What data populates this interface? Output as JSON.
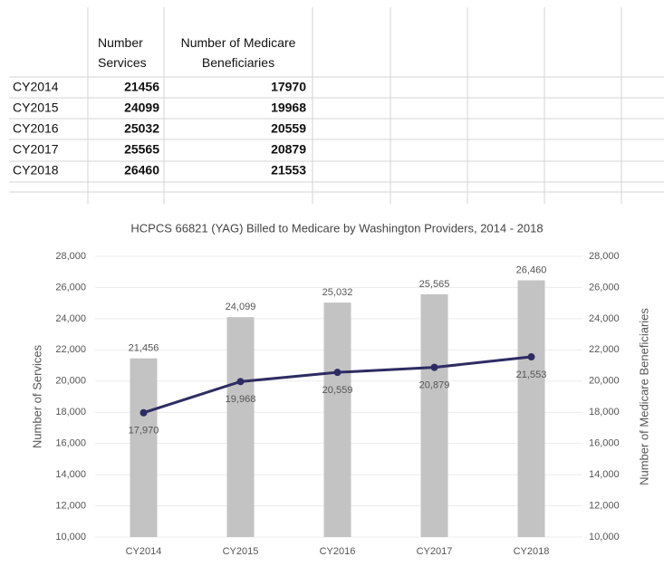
{
  "table": {
    "headers": [
      "Number Services",
      "Number of Medicare Beneficiaries"
    ],
    "rows": [
      [
        "CY2014",
        21456,
        17970
      ],
      [
        "CY2015",
        24099,
        19968
      ],
      [
        "CY2016",
        25032,
        20559
      ],
      [
        "CY2017",
        25565,
        20879
      ],
      [
        "CY2018",
        26460,
        21553
      ]
    ]
  },
  "chart_data": {
    "type": "bar",
    "title": "HCPCS 66821 (YAG) Billed to Medicare by Washington Providers, 2014 - 2018",
    "categories": [
      "CY2014",
      "CY2015",
      "CY2016",
      "CY2017",
      "CY2018"
    ],
    "ylabel": "Number of Services",
    "y2label": "Number of Medicare Beneficiaries",
    "ylim": [
      10000,
      28000
    ],
    "yticks": [
      {
        "value": 10000,
        "label": "10,000"
      },
      {
        "value": 12000,
        "label": "12,000"
      },
      {
        "value": 14000,
        "label": "14,000"
      },
      {
        "value": 16000,
        "label": "16,000"
      },
      {
        "value": 18000,
        "label": "18,000"
      },
      {
        "value": 20000,
        "label": "20,000"
      },
      {
        "value": 22000,
        "label": "22,000"
      },
      {
        "value": 24000,
        "label": "24,000"
      },
      {
        "value": 26000,
        "label": "26,000"
      },
      {
        "value": 28000,
        "label": "28,000"
      }
    ],
    "y2lim": [
      10000,
      28000
    ],
    "y2ticks": [
      {
        "value": 10000,
        "label": "10,000"
      },
      {
        "value": 12000,
        "label": "12,000"
      },
      {
        "value": 14000,
        "label": "14,000"
      },
      {
        "value": 16000,
        "label": "16,000"
      },
      {
        "value": 18000,
        "label": "18,000"
      },
      {
        "value": 20000,
        "label": "20,000"
      },
      {
        "value": 22000,
        "label": "22,000"
      },
      {
        "value": 24000,
        "label": "24,000"
      },
      {
        "value": 26000,
        "label": "26,000"
      },
      {
        "value": 28000,
        "label": "28,000"
      }
    ],
    "series": [
      {
        "name": "Number of Services",
        "type": "bar",
        "color": "#c3c3c3",
        "values": [
          21456,
          24099,
          25032,
          25565,
          26460
        ],
        "value_labels": [
          "21,456",
          "24,099",
          "25,032",
          "25,565",
          "26,460"
        ]
      },
      {
        "name": "Number of Medicare Beneficiaries",
        "type": "line",
        "axis": "y2",
        "color": "#2e2c62",
        "values": [
          17970,
          19968,
          20559,
          20879,
          21553
        ],
        "value_labels": [
          "17,970",
          "19,968",
          "20,559",
          "20,879",
          "21,553"
        ]
      }
    ]
  }
}
